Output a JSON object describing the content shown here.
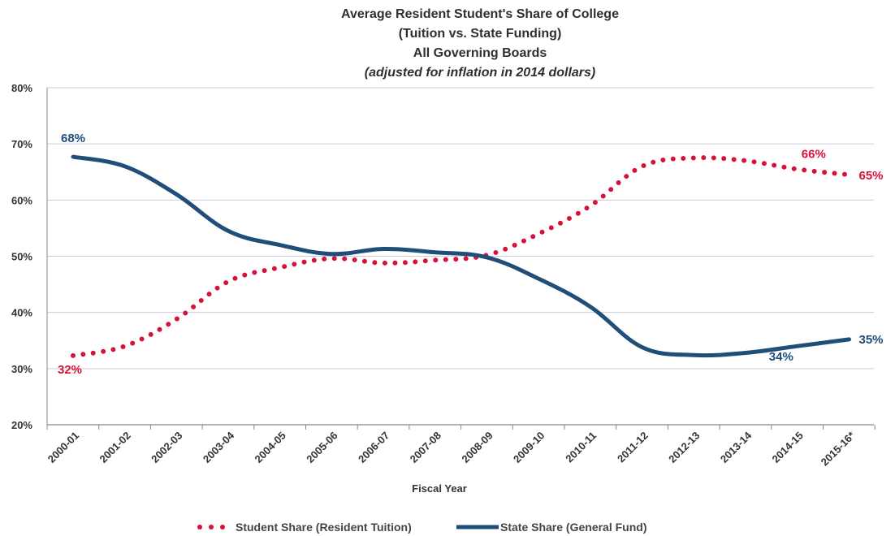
{
  "chart_data": {
    "type": "line",
    "title": [
      "Average Resident Student's Share of College",
      "(Tuition vs. State Funding)",
      "All Governing Boards",
      "(adjusted for inflation in 2014 dollars)"
    ],
    "xlabel": "Fiscal Year",
    "ylabel": "",
    "categories": [
      "2000-01",
      "2001-02",
      "2002-03",
      "2003-04",
      "2004-05",
      "2005-06",
      "2006-07",
      "2007-08",
      "2008-09",
      "2009-10",
      "2010-11",
      "2011-12",
      "2012-13",
      "2013-14",
      "2014-15",
      "2015-16*"
    ],
    "ylim": [
      20,
      80
    ],
    "yticks": [
      20,
      30,
      40,
      50,
      60,
      70,
      80
    ],
    "ytick_labels": [
      "20%",
      "30%",
      "40%",
      "50%",
      "60%",
      "70%",
      "80%"
    ],
    "grid": "horizontal",
    "legend_position": "bottom",
    "series": [
      {
        "name": "Student Share (Resident Tuition)",
        "style": "dotted",
        "color": "#d6123a",
        "values": [
          32.3,
          34.0,
          38.8,
          45.5,
          48.0,
          49.6,
          48.8,
          49.3,
          50.2,
          54.0,
          59.0,
          66.0,
          67.5,
          67.0,
          65.5,
          64.5
        ]
      },
      {
        "name": "State Share (General Fund)",
        "style": "solid",
        "color": "#1f4e79",
        "values": [
          67.7,
          66.0,
          61.0,
          54.5,
          52.0,
          50.4,
          51.3,
          50.7,
          49.8,
          46.0,
          41.0,
          33.8,
          32.4,
          32.8,
          34.0,
          35.2
        ]
      }
    ],
    "annotations": [
      {
        "text": "68%",
        "series": 1,
        "index": 0,
        "color": "#1f4e79"
      },
      {
        "text": "32%",
        "series": 0,
        "index": 0,
        "color": "#d6123a"
      },
      {
        "text": "66%",
        "series": 0,
        "index": 14,
        "color": "#d6123a"
      },
      {
        "text": "65%",
        "series": 0,
        "index": 15,
        "color": "#d6123a"
      },
      {
        "text": "34%",
        "series": 1,
        "index": 14,
        "color": "#1f4e79"
      },
      {
        "text": "35%",
        "series": 1,
        "index": 15,
        "color": "#1f4e79"
      }
    ]
  }
}
